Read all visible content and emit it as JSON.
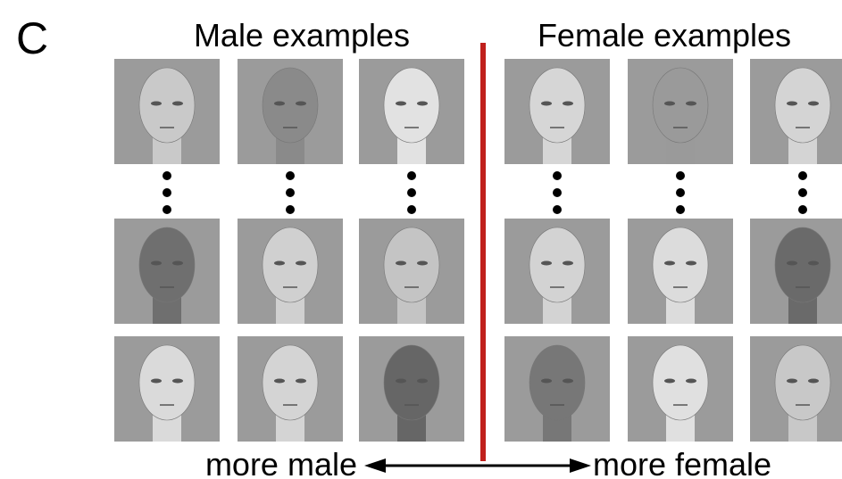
{
  "panel_label": "C",
  "male": {
    "title": "Male examples"
  },
  "female": {
    "title": "Female examples"
  },
  "axis": {
    "left_label": "more male",
    "right_label": "more female"
  }
}
